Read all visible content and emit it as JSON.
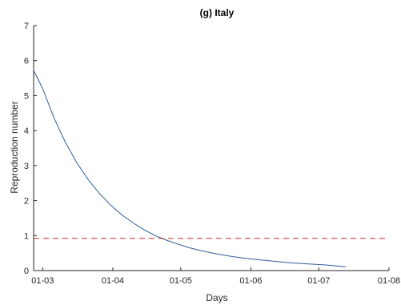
{
  "chart_data": {
    "type": "line",
    "title": "(g) Italy",
    "xlabel": "Days",
    "ylabel": "Reproduction number",
    "xlim": [
      "2020-02-26",
      "2020-08-01"
    ],
    "ylim": [
      0,
      7
    ],
    "x_ticks": [
      {
        "date": "2020-03-01",
        "label": "01-03"
      },
      {
        "date": "2020-04-01",
        "label": "01-04"
      },
      {
        "date": "2020-05-01",
        "label": "01-05"
      },
      {
        "date": "2020-06-01",
        "label": "01-06"
      },
      {
        "date": "2020-07-01",
        "label": "01-07"
      },
      {
        "date": "2020-08-01",
        "label": "01-08"
      }
    ],
    "y_ticks": [
      0,
      1,
      2,
      3,
      4,
      5,
      6,
      7
    ],
    "grid": false,
    "series": [
      {
        "color": "#2b5d9a",
        "style": "solid",
        "x": [
          "2020-02-26",
          "2020-03-01",
          "2020-03-06",
          "2020-03-11",
          "2020-03-16",
          "2020-03-21",
          "2020-03-26",
          "2020-03-31",
          "2020-04-05",
          "2020-04-10",
          "2020-04-15",
          "2020-04-20",
          "2020-04-25",
          "2020-04-30",
          "2020-05-05",
          "2020-05-10",
          "2020-05-15",
          "2020-05-20",
          "2020-05-25",
          "2020-05-30",
          "2020-06-04",
          "2020-06-09",
          "2020-06-14",
          "2020-06-19",
          "2020-06-24",
          "2020-06-29",
          "2020-07-04",
          "2020-07-09",
          "2020-07-13"
        ],
        "y": [
          5.72,
          5.2,
          4.36,
          3.67,
          3.09,
          2.61,
          2.21,
          1.87,
          1.59,
          1.36,
          1.16,
          0.99,
          0.86,
          0.75,
          0.65,
          0.57,
          0.5,
          0.44,
          0.39,
          0.35,
          0.31,
          0.28,
          0.25,
          0.22,
          0.2,
          0.18,
          0.16,
          0.13,
          0.11
        ]
      },
      {
        "color": "#d62728",
        "style": "dashed",
        "x": [
          "2020-02-26",
          "2020-08-01"
        ],
        "y": [
          0.92,
          0.92
        ]
      }
    ]
  }
}
